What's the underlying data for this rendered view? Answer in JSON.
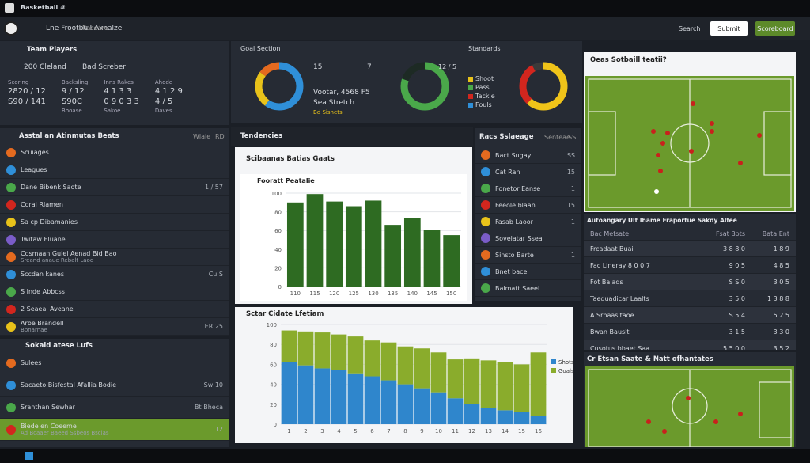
{
  "header": {
    "app": "Basketball #",
    "title": "Lne Frootbull Aknalze",
    "tab": "Racoare",
    "search": "Search",
    "submit": "Submit",
    "action": "Scoreboard"
  },
  "summary": {
    "title": "Team Players",
    "home": "200 Cleland",
    "away": "Bad Screber",
    "stats": [
      {
        "label": "Scoring",
        "value": "2820 / 12",
        "sub": "S90 / 141"
      },
      {
        "label": "Backsling",
        "value": "9 / 12",
        "sub": "S90C",
        "extra": "Bhoase"
      },
      {
        "label": "Inns Rakes",
        "value": "4 1 3 3",
        "sub": "0 9 0 3 3",
        "extra": "Sakoe"
      },
      {
        "label": "Ahode",
        "value": "4 1 2 9",
        "sub": "4 / 5",
        "extra": "Daves"
      }
    ]
  },
  "donut_labels": {
    "goal": "Goal Section",
    "d1a": "15",
    "d1b": "7",
    "d1c": "Vootar, 4568 F5",
    "d1d": "Sea Stretch",
    "d1e": "Bd Sisnets",
    "d2": "12 / 5",
    "d3title": "Standards",
    "legend": [
      "Shoot",
      "Pass",
      "Tackle",
      "Fouls"
    ]
  },
  "left_list": {
    "title": "Asstal an Atinmutas Beats",
    "cols": [
      "Wlaie",
      "RD"
    ],
    "rows": [
      {
        "label": "Scuiages"
      },
      {
        "label": "Leagues"
      },
      {
        "label": "Dane Bibenk Saote",
        "value": "1 / 57"
      },
      {
        "label": "Coral Rlamen"
      },
      {
        "label": "Sa cp Dibamanies"
      },
      {
        "label": "Twitaw Eluane"
      },
      {
        "label": "Cosmaan Gulel Aenad Bid Bao",
        "sub": "Sreand anaue Rebalt Laod"
      },
      {
        "label": "Sccdan kanes",
        "value": "Cu S"
      },
      {
        "label": "S Inde Abbcss"
      },
      {
        "label": "2 Seaeal Aveane"
      },
      {
        "label": "Arbe Brandell",
        "sub": "Bbnarnae",
        "value": "ER 25"
      }
    ]
  },
  "left_list2": {
    "title": "Sokald atese Lufs",
    "rows": [
      {
        "label": "Sulees"
      },
      {
        "label": "Sacaeto Bisfestal Afallia Bodie",
        "value": "Sw 10"
      },
      {
        "label": "Sranthan Sewhar",
        "value": "Bt Bheca"
      },
      {
        "label": "Biede en Coeeme",
        "sub": "Ad Bcaaer Baeed Ssbeos Bsclas",
        "value": "12"
      }
    ]
  },
  "tendencies": {
    "title": "Tendencies",
    "card": "Scibaanas Batias Gaats",
    "inner": "Fooratt Peatalie",
    "card2": "Sctar Cidate Lfetiam"
  },
  "mid_list": {
    "title": "Racs Sslaeage",
    "cols": [
      "Senteae",
      "SS"
    ],
    "rows": [
      {
        "label": "Bact Sugay",
        "value": "SS"
      },
      {
        "label": "Cat Ran",
        "value": "15"
      },
      {
        "label": "Fonetor Eanse",
        "value": "1"
      },
      {
        "label": "Feeole blaan",
        "value": "15"
      },
      {
        "label": "Fasab Laoor",
        "value": "1"
      },
      {
        "label": "Sovelatar Ssea",
        "value": ""
      },
      {
        "label": "Sinsto Barte",
        "value": "1"
      },
      {
        "label": "Bnet bace"
      },
      {
        "label": "Balmatt Saeel"
      }
    ]
  },
  "field1": {
    "title": "Oeas Sotbaill teatii?"
  },
  "table": {
    "title": "Autoangary Ult Ihame Fraportue Sakdy Alfee",
    "cols": [
      "Bac Mefsate",
      "Fsat Bots",
      "Bata Ent"
    ],
    "rows": [
      [
        "Frcadaat Buai",
        "3 8 8 0",
        "1 8 9"
      ],
      [
        "Fac Lineray 8 0 0 7",
        "9 0 5",
        "4 8 5"
      ],
      [
        "Fot Baiads",
        "S S 0",
        "3 0 5"
      ],
      [
        "Taeduadicar Laalts",
        "3 5 0",
        "1 3 8 8"
      ],
      [
        "A Srbaasitaoe",
        "S 5 4",
        "5 2 5"
      ],
      [
        "Bwan Bausit",
        "3 1 5",
        "3 3 0"
      ],
      [
        "Cusotus bbaet Saa",
        "5 5 0 0",
        "3 5 2"
      ]
    ]
  },
  "field2": {
    "title": "Cr Etsan Saate & Natt ofhantates"
  },
  "chart_data": [
    {
      "type": "pie",
      "values": [
        60,
        25,
        15
      ],
      "colors": [
        "#2f8fd8",
        "#e8c21a",
        "#e46a1f"
      ]
    },
    {
      "type": "pie",
      "values": [
        80,
        20
      ],
      "colors": [
        "#4aa84a",
        "#1d2a24"
      ]
    },
    {
      "type": "pie",
      "values": [
        62,
        30,
        8
      ],
      "colors": [
        "#f0c419",
        "#d2261e",
        "#3a3a3a"
      ]
    },
    {
      "type": "bar",
      "color": "#2e6b22",
      "categories": [
        "110",
        "115",
        "120",
        "125",
        "130",
        "135",
        "140",
        "145",
        "150"
      ],
      "values": [
        90,
        99,
        91,
        86,
        92,
        66,
        73,
        61,
        55
      ],
      "ylim": [
        0,
        100
      ],
      "yticks": [
        0,
        20,
        40,
        60,
        80,
        100
      ],
      "grid": true
    },
    {
      "type": "stacked_bar",
      "categories": [
        "1",
        "2",
        "3",
        "4",
        "5",
        "6",
        "7",
        "8",
        "9",
        "10",
        "11",
        "12",
        "13",
        "14",
        "15",
        "16"
      ],
      "series": [
        {
          "name": "Shots",
          "color": "#2f86cc",
          "values": [
            62,
            59,
            56,
            54,
            51,
            48,
            44,
            40,
            36,
            32,
            26,
            20,
            16,
            14,
            12,
            8
          ]
        },
        {
          "name": "Goals",
          "color": "#8aac2c",
          "values": [
            32,
            34,
            36,
            36,
            37,
            36,
            38,
            38,
            40,
            40,
            39,
            46,
            48,
            48,
            48,
            64
          ]
        }
      ],
      "ylim": [
        0,
        100
      ],
      "yticks": [
        0,
        20,
        40,
        60,
        80,
        100
      ],
      "grid": true,
      "legend": "right"
    }
  ]
}
